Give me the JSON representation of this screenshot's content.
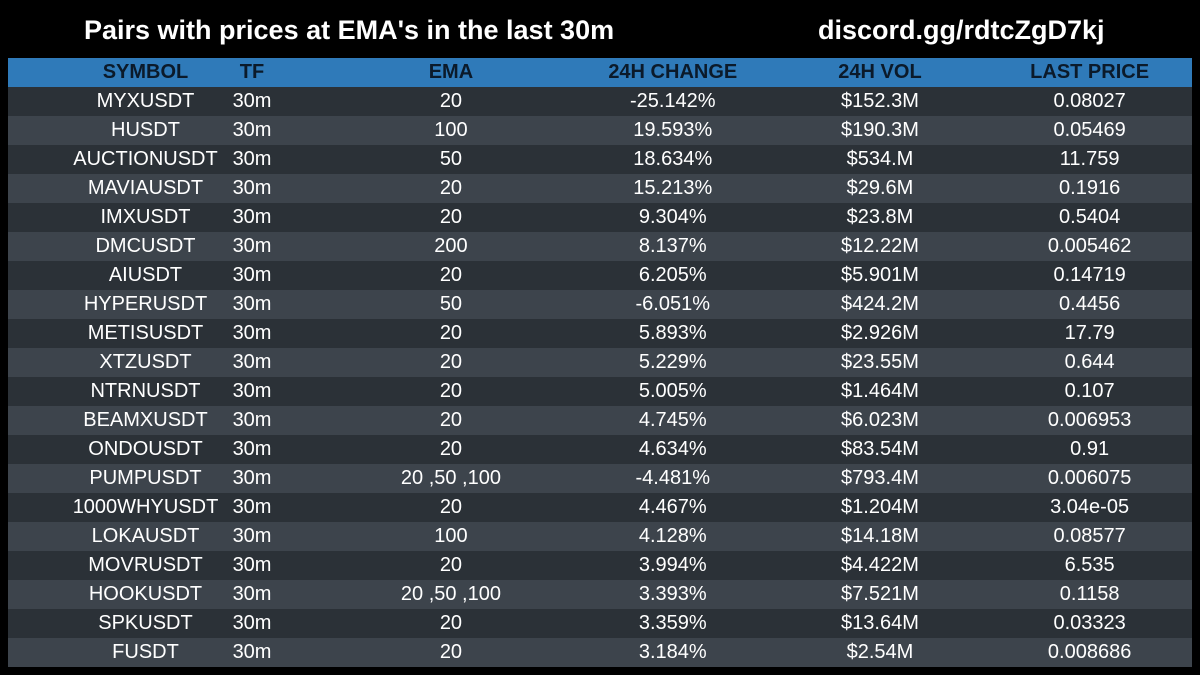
{
  "header": {
    "title": "Pairs with prices at EMA's in the last 30m",
    "invite": "discord.gg/rdtcZgD7kj"
  },
  "columns": [
    "SYMBOL",
    "TF",
    "EMA",
    "24H CHANGE",
    "24H VOL",
    "LAST PRICE"
  ],
  "rows": [
    [
      "MYXUSDT",
      "30m",
      "20",
      "-25.142%",
      "$152.3M",
      "0.08027"
    ],
    [
      "HUSDT",
      "30m",
      "100",
      "19.593%",
      "$190.3M",
      "0.05469"
    ],
    [
      "AUCTIONUSDT",
      "30m",
      "50",
      "18.634%",
      "$534.M",
      "11.759"
    ],
    [
      "MAVIAUSDT",
      "30m",
      "20",
      "15.213%",
      "$29.6M",
      "0.1916"
    ],
    [
      "IMXUSDT",
      "30m",
      "20",
      "9.304%",
      "$23.8M",
      "0.5404"
    ],
    [
      "DMCUSDT",
      "30m",
      "200",
      "8.137%",
      "$12.22M",
      "0.005462"
    ],
    [
      "AIUSDT",
      "30m",
      "20",
      "6.205%",
      "$5.901M",
      "0.14719"
    ],
    [
      "HYPERUSDT",
      "30m",
      "50",
      "-6.051%",
      "$424.2M",
      "0.4456"
    ],
    [
      "METISUSDT",
      "30m",
      "20",
      "5.893%",
      "$2.926M",
      "17.79"
    ],
    [
      "XTZUSDT",
      "30m",
      "20",
      "5.229%",
      "$23.55M",
      "0.644"
    ],
    [
      "NTRNUSDT",
      "30m",
      "20",
      "5.005%",
      "$1.464M",
      "0.107"
    ],
    [
      "BEAMXUSDT",
      "30m",
      "20",
      "4.745%",
      "$6.023M",
      "0.006953"
    ],
    [
      "ONDOUSDT",
      "30m",
      "20",
      "4.634%",
      "$83.54M",
      "0.91"
    ],
    [
      "PUMPUSDT",
      "30m",
      "20 ,50 ,100",
      "-4.481%",
      "$793.4M",
      "0.006075"
    ],
    [
      "1000WHYUSDT",
      "30m",
      "20",
      "4.467%",
      "$1.204M",
      "3.04e-05"
    ],
    [
      "LOKAUSDT",
      "30m",
      "100",
      "4.128%",
      "$14.18M",
      "0.08577"
    ],
    [
      "MOVRUSDT",
      "30m",
      "20",
      "3.994%",
      "$4.422M",
      "6.535"
    ],
    [
      "HOOKUSDT",
      "30m",
      "20 ,50 ,100",
      "3.393%",
      "$7.521M",
      "0.1158"
    ],
    [
      "SPKUSDT",
      "30m",
      "20",
      "3.359%",
      "$13.64M",
      "0.03323"
    ],
    [
      "FUSDT",
      "30m",
      "20",
      "3.184%",
      "$2.54M",
      "0.008686"
    ]
  ],
  "colors": {
    "background": "#000000",
    "header_row": "#2f7ab9",
    "row_dark": "#2b3137",
    "row_light": "#3d444c",
    "text": "#ffffff"
  }
}
